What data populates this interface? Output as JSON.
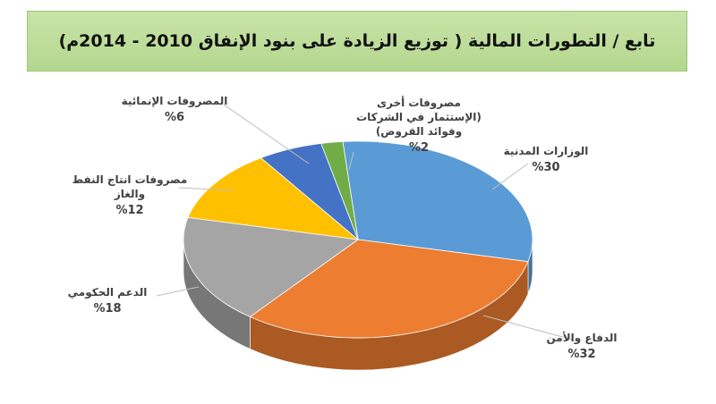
{
  "title": "تابع / التطورات المالية ( توزيع الزيادة على بنود الإنفاق 2010 - 2014م)",
  "colors": {
    "banner": "#b9dc95",
    "civil": "#5b9bd5",
    "defense": "#ed7d31",
    "support": "#a5a5a5",
    "oil": "#ffc000",
    "development": "#4472c4",
    "other": "#70ad47"
  },
  "chart_data": {
    "type": "pie",
    "style": "3d",
    "slices": [
      {
        "key": "civil",
        "label_lines": [
          "الوزارات المدنية"
        ],
        "value_label": "%30",
        "value": 30
      },
      {
        "key": "defense",
        "label_lines": [
          "الدفاع والأمن"
        ],
        "value_label": "%32",
        "value": 32
      },
      {
        "key": "support",
        "label_lines": [
          "الدعم الحكومي"
        ],
        "value_label": "%18",
        "value": 18
      },
      {
        "key": "oil",
        "label_lines": [
          "مصروفات انتاج النفط",
          "والغاز"
        ],
        "value_label": "%12",
        "value": 12
      },
      {
        "key": "development",
        "label_lines": [
          "المصروفات الإنمائية"
        ],
        "value_label": "%6",
        "value": 6
      },
      {
        "key": "other",
        "label_lines": [
          "مصروفات أخرى",
          "(الإستثمار في الشركات",
          "وفوائد القروض)"
        ],
        "value_label": "%2",
        "value": 2
      }
    ]
  }
}
